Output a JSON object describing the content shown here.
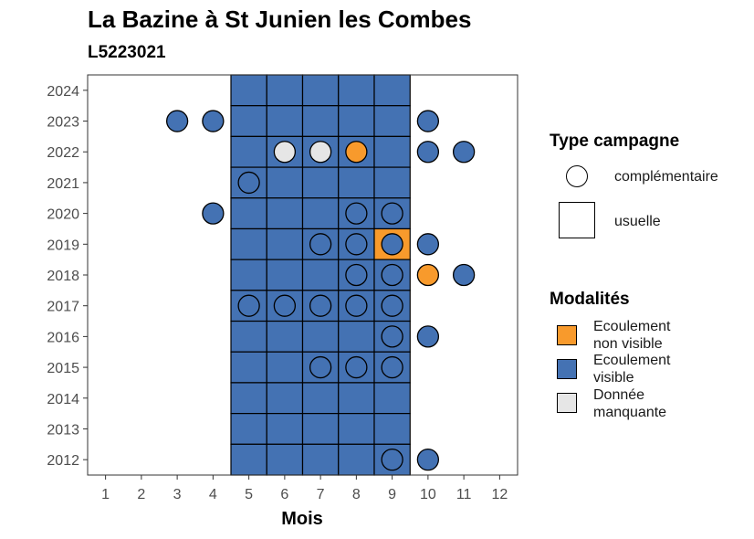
{
  "title": "La Bazine à St Junien les Combes",
  "subtitle": "L5223021",
  "chart_data": {
    "type": "heatmap",
    "xlabel": "Mois",
    "ylabel": "",
    "x_ticks": [
      1,
      2,
      3,
      4,
      5,
      6,
      7,
      8,
      9,
      10,
      11,
      12
    ],
    "y_ticks": [
      2012,
      2013,
      2014,
      2015,
      2016,
      2017,
      2018,
      2019,
      2020,
      2021,
      2022,
      2023,
      2024
    ],
    "xlim": [
      0.5,
      12.5
    ],
    "ylim": [
      2011.5,
      2024.5
    ],
    "colors": {
      "Ecoulement non visible": "#f89a2c",
      "Ecoulement visible": "#4472b3",
      "Donnée manquante": "#e6e6e6"
    },
    "usuelle": [
      {
        "year": 2024,
        "months": [
          5,
          6,
          7,
          8,
          9
        ],
        "modality": "Ecoulement visible"
      },
      {
        "year": 2023,
        "months": [
          5,
          6,
          7,
          8,
          9
        ],
        "modality": "Ecoulement visible"
      },
      {
        "year": 2022,
        "months": [
          5,
          6,
          7,
          8,
          9
        ],
        "modality": "Ecoulement visible"
      },
      {
        "year": 2021,
        "months": [
          5,
          6,
          7,
          8,
          9
        ],
        "modality": "Ecoulement visible"
      },
      {
        "year": 2020,
        "months": [
          5,
          6,
          7,
          8,
          9
        ],
        "modality": "Ecoulement visible"
      },
      {
        "year": 2019,
        "months": [
          5,
          6,
          7,
          8
        ],
        "modality": "Ecoulement visible"
      },
      {
        "year": 2019,
        "months": [
          9
        ],
        "modality": "Ecoulement non visible"
      },
      {
        "year": 2018,
        "months": [
          5,
          6,
          7,
          8,
          9
        ],
        "modality": "Ecoulement visible"
      },
      {
        "year": 2017,
        "months": [
          5,
          6,
          7,
          8,
          9
        ],
        "modality": "Ecoulement visible"
      },
      {
        "year": 2016,
        "months": [
          5,
          6,
          7,
          8,
          9
        ],
        "modality": "Ecoulement visible"
      },
      {
        "year": 2015,
        "months": [
          5,
          6,
          7,
          8,
          9
        ],
        "modality": "Ecoulement visible"
      },
      {
        "year": 2014,
        "months": [
          5,
          6,
          7,
          8,
          9
        ],
        "modality": "Ecoulement visible"
      },
      {
        "year": 2013,
        "months": [
          5,
          6,
          7,
          8,
          9
        ],
        "modality": "Ecoulement visible"
      },
      {
        "year": 2012,
        "months": [
          5,
          6,
          7,
          8,
          9
        ],
        "modality": "Ecoulement visible"
      }
    ],
    "complementaire": [
      {
        "year": 2023,
        "month": 3,
        "modality": "Ecoulement visible"
      },
      {
        "year": 2023,
        "month": 4,
        "modality": "Ecoulement visible"
      },
      {
        "year": 2023,
        "month": 10,
        "modality": "Ecoulement visible"
      },
      {
        "year": 2022,
        "month": 6,
        "modality": "Donnée manquante"
      },
      {
        "year": 2022,
        "month": 7,
        "modality": "Donnée manquante"
      },
      {
        "year": 2022,
        "month": 8,
        "modality": "Ecoulement non visible"
      },
      {
        "year": 2022,
        "month": 10,
        "modality": "Ecoulement visible"
      },
      {
        "year": 2022,
        "month": 11,
        "modality": "Ecoulement visible"
      },
      {
        "year": 2021,
        "month": 5,
        "modality": "Ecoulement visible"
      },
      {
        "year": 2020,
        "month": 4,
        "modality": "Ecoulement visible"
      },
      {
        "year": 2020,
        "month": 8,
        "modality": "Ecoulement visible"
      },
      {
        "year": 2020,
        "month": 9,
        "modality": "Ecoulement visible"
      },
      {
        "year": 2019,
        "month": 7,
        "modality": "Ecoulement visible"
      },
      {
        "year": 2019,
        "month": 8,
        "modality": "Ecoulement visible"
      },
      {
        "year": 2019,
        "month": 9,
        "modality": "Ecoulement visible"
      },
      {
        "year": 2019,
        "month": 10,
        "modality": "Ecoulement visible"
      },
      {
        "year": 2018,
        "month": 8,
        "modality": "Ecoulement visible"
      },
      {
        "year": 2018,
        "month": 9,
        "modality": "Ecoulement visible"
      },
      {
        "year": 2018,
        "month": 10,
        "modality": "Ecoulement non visible"
      },
      {
        "year": 2018,
        "month": 11,
        "modality": "Ecoulement visible"
      },
      {
        "year": 2017,
        "month": 5,
        "modality": "Ecoulement visible"
      },
      {
        "year": 2017,
        "month": 6,
        "modality": "Ecoulement visible"
      },
      {
        "year": 2017,
        "month": 7,
        "modality": "Ecoulement visible"
      },
      {
        "year": 2017,
        "month": 8,
        "modality": "Ecoulement visible"
      },
      {
        "year": 2017,
        "month": 9,
        "modality": "Ecoulement visible"
      },
      {
        "year": 2016,
        "month": 9,
        "modality": "Ecoulement visible"
      },
      {
        "year": 2016,
        "month": 10,
        "modality": "Ecoulement visible"
      },
      {
        "year": 2015,
        "month": 7,
        "modality": "Ecoulement visible"
      },
      {
        "year": 2015,
        "month": 8,
        "modality": "Ecoulement visible"
      },
      {
        "year": 2015,
        "month": 9,
        "modality": "Ecoulement visible"
      },
      {
        "year": 2012,
        "month": 9,
        "modality": "Ecoulement visible"
      },
      {
        "year": 2012,
        "month": 10,
        "modality": "Ecoulement visible"
      }
    ]
  },
  "legend": {
    "type_title": "Type campagne",
    "type_items": [
      {
        "label": "complémentaire",
        "shape": "circle"
      },
      {
        "label": "usuelle",
        "shape": "square"
      }
    ],
    "mod_title": "Modalités",
    "mod_items": [
      {
        "label_line1": "Ecoulement",
        "label_line2": "non visible",
        "color": "#f89a2c"
      },
      {
        "label_line1": "Ecoulement",
        "label_line2": "visible",
        "color": "#4472b3"
      },
      {
        "label_line1": "Donnée",
        "label_line2": "manquante",
        "color": "#e6e6e6"
      }
    ]
  }
}
